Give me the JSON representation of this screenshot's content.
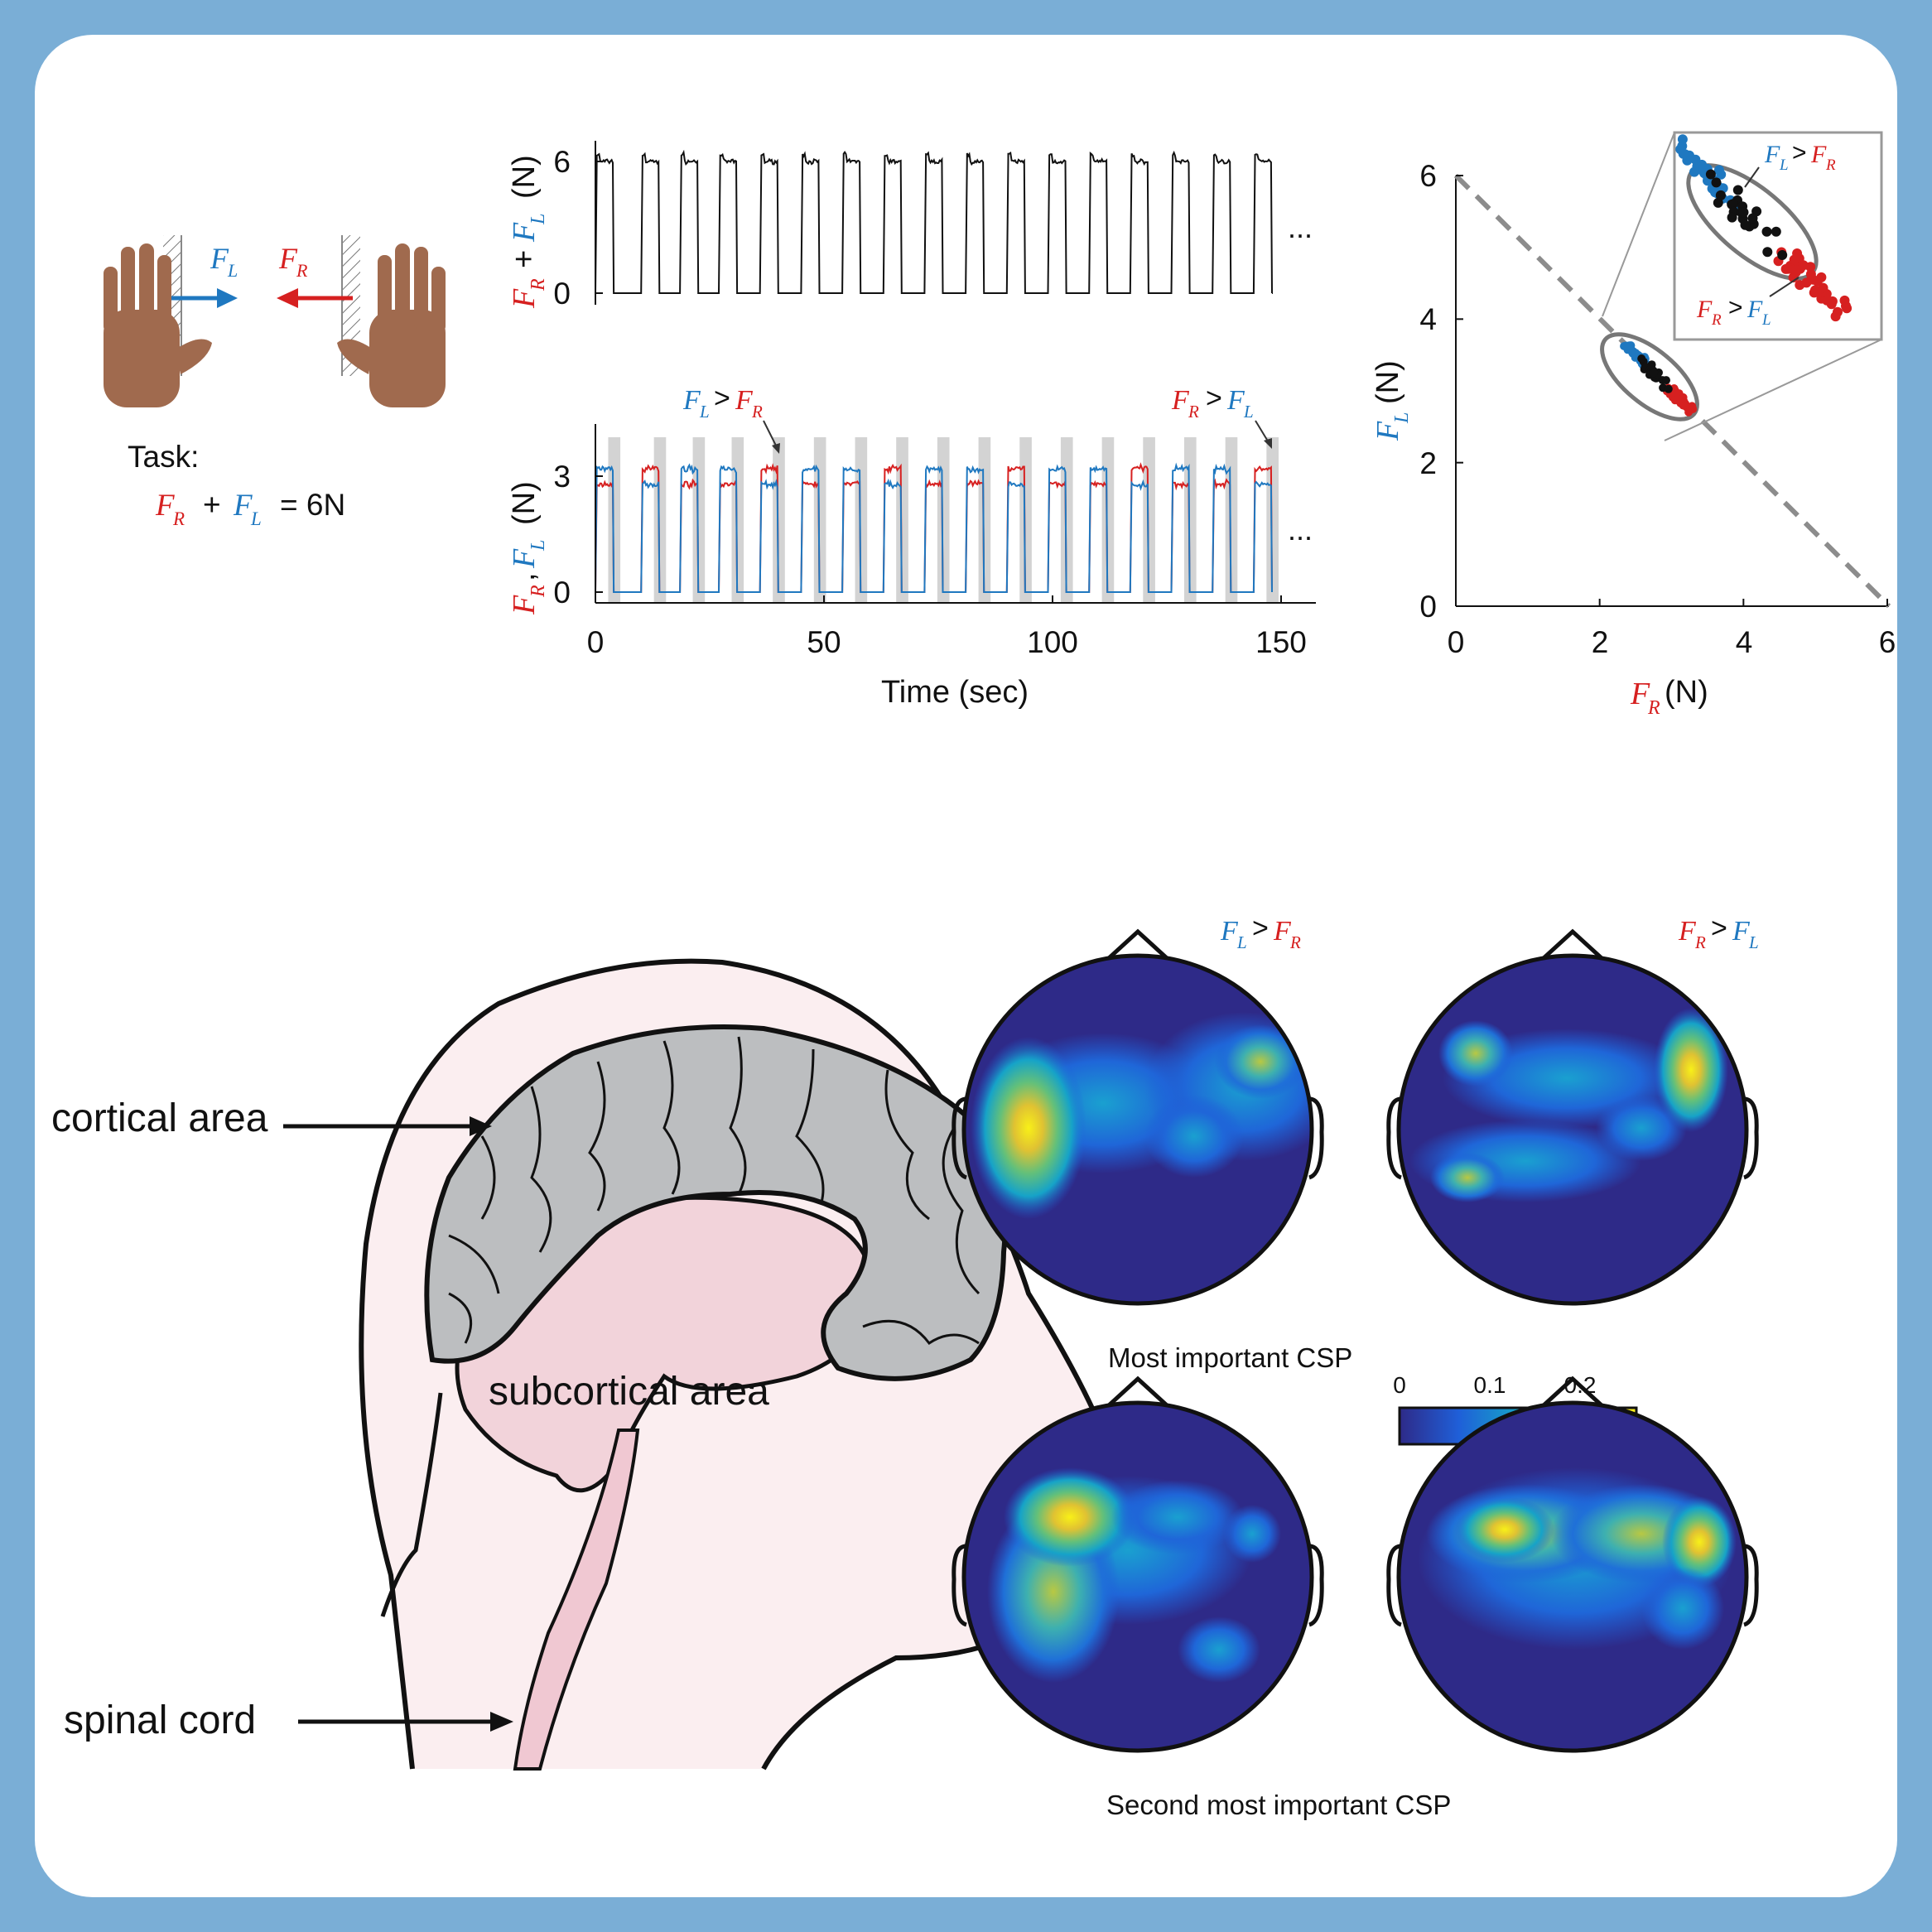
{
  "colors": {
    "frame": "#7aaed6",
    "left_force": "#1f78c0",
    "right_force": "#d62020",
    "total_force": "#111111",
    "shade": "#d3d3d3",
    "skin": "#fbeef0",
    "brain": "#bcbec0",
    "subcortex": "#f2d3da"
  },
  "task": {
    "title": "Task:",
    "equation_tail": "= 6N",
    "F": "F",
    "R": "R",
    "L": "L",
    "plus": "+"
  },
  "top_panel": {
    "ylabel_tail": "(N)",
    "ellipsis": "...",
    "yticks": [
      "0",
      "6"
    ]
  },
  "bottom_panel": {
    "ylabel_tail": "(N)",
    "ellipsis": "...",
    "yticks": [
      "0",
      "3"
    ],
    "xticks": [
      "0",
      "50",
      "100",
      "150"
    ],
    "xlabel": "Time (sec)",
    "annot_left": "F_L > F_R",
    "annot_right": "F_R > F_L"
  },
  "scatter": {
    "xticks": [
      "0",
      "2",
      "4",
      "6"
    ],
    "yticks": [
      "0",
      "2",
      "4",
      "6"
    ],
    "xlabel_tail": "(N)",
    "ylabel_tail": "(N)",
    "inset_top": "F_L > F_R",
    "inset_bottom": "F_R > F_L"
  },
  "chart_data": [
    {
      "type": "line",
      "panel": "sum",
      "series": [
        {
          "name": "F_R + F_L",
          "color": "#111111"
        }
      ],
      "xlim": [
        0,
        150
      ],
      "ylim": [
        0,
        6.8
      ],
      "yticks": [
        0,
        6
      ],
      "pulses_on": [
        [
          0,
          4
        ],
        [
          10,
          14
        ],
        [
          18.5,
          22.5
        ],
        [
          27,
          31
        ],
        [
          36,
          40
        ],
        [
          45,
          49
        ],
        [
          54,
          58
        ],
        [
          63,
          67
        ],
        [
          72,
          76
        ],
        [
          81,
          85
        ],
        [
          90,
          94
        ],
        [
          99,
          103
        ],
        [
          108,
          112
        ],
        [
          117,
          121
        ],
        [
          126,
          130
        ],
        [
          135,
          139
        ],
        [
          144,
          148
        ]
      ],
      "plateau": 6
    },
    {
      "type": "line",
      "panel": "individual",
      "series": [
        {
          "name": "F_R",
          "color": "#d62020"
        },
        {
          "name": "F_L",
          "color": "#1f78c0"
        }
      ],
      "xlim": [
        0,
        150
      ],
      "ylim": [
        0,
        3.8
      ],
      "yticks": [
        0,
        3
      ],
      "xticks": [
        0,
        50,
        100,
        150
      ],
      "xlabel": "Time (sec)"
    },
    {
      "type": "scatter",
      "panel": "FR_vs_FL",
      "xlim": [
        0,
        6
      ],
      "ylim": [
        0,
        6
      ],
      "xticks": [
        0,
        2,
        4,
        6
      ],
      "yticks": [
        0,
        2,
        4,
        6
      ],
      "reference_line": {
        "x": [
          0,
          6
        ],
        "y": [
          6,
          0
        ],
        "style": "dashed"
      },
      "ellipse_center": [
        2.8,
        3.2
      ],
      "clusters": [
        {
          "name": "F_L > F_R",
          "color": "#1f78c0",
          "center": [
            2.5,
            3.5
          ],
          "count": 40
        },
        {
          "name": "F_R > F_L",
          "color": "#d62020",
          "center": [
            3.1,
            2.9
          ],
          "count": 40
        },
        {
          "name": "neutral",
          "color": "#111111",
          "center": [
            2.75,
            3.25
          ],
          "count": 25
        }
      ]
    }
  ],
  "brain": {
    "cortical": "cortical area",
    "subcortical": "subcortical area",
    "spinal": "spinal cord"
  },
  "csp": {
    "col_left": "F_L > F_R",
    "col_right": "F_R > F_L",
    "row1_caption": "Most important CSP",
    "row2_caption": "Second most important CSP",
    "colorbar_ticks": [
      "0",
      "0.1",
      "0.2"
    ],
    "colormap": [
      "#2e2a88",
      "#1f5fd8",
      "#16a3c8",
      "#63c07a",
      "#e0c232",
      "#f8f018"
    ]
  }
}
